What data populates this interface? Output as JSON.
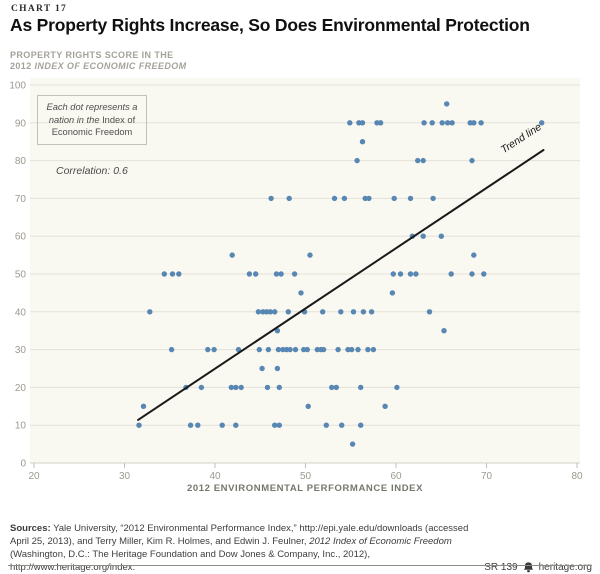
{
  "header": {
    "chart_label": "CHART 17",
    "title": "As Property Rights Increase, So Does Environmental Protection",
    "y_axis_label_line1": "PROPERTY RIGHTS SCORE IN THE",
    "y_axis_label_line2_prefix": "2012 ",
    "y_axis_label_line2_italic": "INDEX OF ECONOMIC FREEDOM"
  },
  "annotation": {
    "italic_part": "Each dot represents a nation in the",
    "regular_part": " Index of Economic Freedom"
  },
  "correlation_label": "Correlation: 0.6",
  "trend_label": "Trend line",
  "chart_data": {
    "type": "scatter",
    "title": "As Property Rights Increase, So Does Environmental Protection",
    "xlabel": "2012 ENVIRONMENTAL PERFORMANCE INDEX",
    "ylabel": "PROPERTY RIGHTS SCORE IN THE 2012 INDEX OF ECONOMIC FREEDOM",
    "xlim": [
      20,
      80
    ],
    "ylim": [
      0,
      100
    ],
    "x_ticks": [
      20,
      30,
      40,
      50,
      60,
      70,
      80
    ],
    "y_ticks": [
      0,
      10,
      20,
      30,
      40,
      50,
      60,
      70,
      80,
      90,
      100
    ],
    "grid": "horizontal-only",
    "legend": "none",
    "correlation": 0.6,
    "point_color": "#5787b2",
    "trend_color": "#1a1a1a",
    "trend_line": {
      "x1": 31.5,
      "y1": 11.4,
      "x2": 76.3,
      "y2": 82.8
    },
    "points": [
      [
        65.6,
        95
      ],
      [
        54.9,
        90
      ],
      [
        55.9,
        90
      ],
      [
        56.3,
        90
      ],
      [
        57.9,
        90
      ],
      [
        58.3,
        90
      ],
      [
        63.1,
        90
      ],
      [
        64.0,
        90
      ],
      [
        65.1,
        90
      ],
      [
        65.7,
        90
      ],
      [
        66.2,
        90
      ],
      [
        68.2,
        90
      ],
      [
        68.6,
        90
      ],
      [
        69.4,
        90
      ],
      [
        76.1,
        90
      ],
      [
        56.3,
        85
      ],
      [
        55.7,
        80
      ],
      [
        62.4,
        80
      ],
      [
        63.0,
        80
      ],
      [
        68.4,
        80
      ],
      [
        46.2,
        70
      ],
      [
        48.2,
        70
      ],
      [
        53.2,
        70
      ],
      [
        54.3,
        70
      ],
      [
        56.6,
        70
      ],
      [
        57.0,
        70
      ],
      [
        59.8,
        70
      ],
      [
        61.6,
        70
      ],
      [
        64.1,
        70
      ],
      [
        61.8,
        60
      ],
      [
        63.0,
        60
      ],
      [
        65.0,
        60
      ],
      [
        41.9,
        55
      ],
      [
        50.5,
        55
      ],
      [
        68.6,
        55
      ],
      [
        34.4,
        50
      ],
      [
        35.3,
        50
      ],
      [
        36.0,
        50
      ],
      [
        43.8,
        50
      ],
      [
        44.5,
        50
      ],
      [
        46.8,
        50
      ],
      [
        47.3,
        50
      ],
      [
        48.8,
        50
      ],
      [
        59.7,
        50
      ],
      [
        60.5,
        50
      ],
      [
        61.6,
        50
      ],
      [
        62.2,
        50
      ],
      [
        66.1,
        50
      ],
      [
        68.4,
        50
      ],
      [
        69.7,
        50
      ],
      [
        49.5,
        45
      ],
      [
        59.6,
        45
      ],
      [
        32.8,
        40
      ],
      [
        44.8,
        40
      ],
      [
        45.3,
        40
      ],
      [
        45.7,
        40
      ],
      [
        46.1,
        40
      ],
      [
        46.6,
        40
      ],
      [
        48.1,
        40
      ],
      [
        49.9,
        40
      ],
      [
        51.9,
        40
      ],
      [
        53.9,
        40
      ],
      [
        55.3,
        40
      ],
      [
        56.4,
        40
      ],
      [
        57.3,
        40
      ],
      [
        63.7,
        40
      ],
      [
        46.9,
        35
      ],
      [
        65.3,
        35
      ],
      [
        35.2,
        30
      ],
      [
        39.2,
        30
      ],
      [
        39.9,
        30
      ],
      [
        42.6,
        30
      ],
      [
        44.9,
        30
      ],
      [
        45.9,
        30
      ],
      [
        47.0,
        30
      ],
      [
        47.5,
        30
      ],
      [
        47.9,
        30
      ],
      [
        48.3,
        30
      ],
      [
        48.9,
        30
      ],
      [
        49.8,
        30
      ],
      [
        50.2,
        30
      ],
      [
        51.3,
        30
      ],
      [
        51.7,
        30
      ],
      [
        52.0,
        30
      ],
      [
        53.6,
        30
      ],
      [
        54.7,
        30
      ],
      [
        55.1,
        30
      ],
      [
        55.8,
        30
      ],
      [
        56.9,
        30
      ],
      [
        57.5,
        30
      ],
      [
        45.2,
        25
      ],
      [
        46.9,
        25
      ],
      [
        36.8,
        20
      ],
      [
        38.5,
        20
      ],
      [
        41.8,
        20
      ],
      [
        42.3,
        20
      ],
      [
        42.9,
        20
      ],
      [
        45.8,
        20
      ],
      [
        47.1,
        20
      ],
      [
        52.9,
        20
      ],
      [
        53.4,
        20
      ],
      [
        56.1,
        20
      ],
      [
        60.1,
        20
      ],
      [
        32.1,
        15
      ],
      [
        50.3,
        15
      ],
      [
        58.8,
        15
      ],
      [
        31.6,
        10
      ],
      [
        37.3,
        10
      ],
      [
        38.1,
        10
      ],
      [
        40.8,
        10
      ],
      [
        42.3,
        10
      ],
      [
        46.6,
        10
      ],
      [
        47.1,
        10
      ],
      [
        52.3,
        10
      ],
      [
        54.0,
        10
      ],
      [
        56.1,
        10
      ],
      [
        55.2,
        5
      ]
    ]
  },
  "footer": {
    "sources_bold": "Sources:",
    "sources_text_1": " Yale University, “2012 Environmental Performance Index,” http://epi.yale.edu/downloads (accessed April 25, 2013), and Terry Miller, Kim R. Holmes, and Edwin J. Feulner, ",
    "sources_italic": "2012 Index of Economic Freedom",
    "sources_text_2": " (Washington, D.C.: The Heritage Foundation and Dow Jones & Company, Inc., 2012), http://www.heritage.org/index.",
    "report_id": "SR 139",
    "site": "heritage.org"
  }
}
